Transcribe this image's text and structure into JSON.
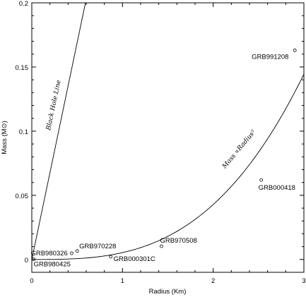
{
  "chart_data": {
    "type": "scatter",
    "title": "",
    "xlabel": "Radius (Km)",
    "ylabel": "Mass (M⊙)",
    "xlim": [
      0,
      3
    ],
    "ylim": [
      -0.01,
      0.2
    ],
    "grid": false,
    "xticks": [
      {
        "value": 0,
        "label": "0"
      },
      {
        "value": 1,
        "label": "1"
      },
      {
        "value": 2,
        "label": "2"
      },
      {
        "value": 3,
        "label": "3"
      }
    ],
    "yticks": [
      {
        "value": 0,
        "label": "0"
      },
      {
        "value": 0.05,
        "label": "0.05"
      },
      {
        "value": 0.1,
        "label": "0.1"
      },
      {
        "value": 0.15,
        "label": "0.15"
      },
      {
        "value": 0.2,
        "label": "0.2"
      }
    ],
    "points": [
      {
        "name": "GRB991208",
        "x": 2.9,
        "y": 0.163
      },
      {
        "name": "GRB000418",
        "x": 2.53,
        "y": 0.062
      },
      {
        "name": "GRB970508",
        "x": 1.43,
        "y": 0.0103
      },
      {
        "name": "GRB970228",
        "x": 0.5,
        "y": 0.0066
      },
      {
        "name": "GRB980326",
        "x": 0.44,
        "y": 0.0048
      },
      {
        "name": "GRB000301C",
        "x": 0.87,
        "y": 0.0022
      },
      {
        "name": "GRB980425",
        "x": 0.02,
        "y": 0.0002
      }
    ],
    "annotations": [
      {
        "text": "Black Hole Line",
        "x": 0.26,
        "y": 0.12
      },
      {
        "text": "Mass ∝Radius³",
        "x": 2.3,
        "y": 0.085
      }
    ],
    "black_hole_line": {
      "slope": 0.338
    },
    "cubic_curve": {
      "coefficient": 0.00535
    }
  }
}
